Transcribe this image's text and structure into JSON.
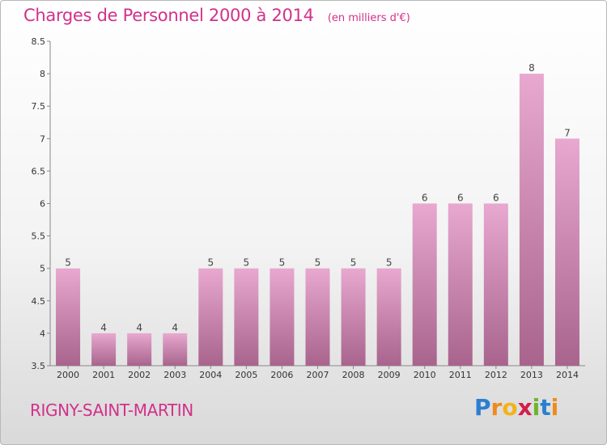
{
  "header": {
    "title": "Charges de Personnel 2000 à 2014",
    "subtitle": "(en milliers d'€)"
  },
  "footer": {
    "location": "RIGNY-SAINT-MARTIN",
    "logo_letters": [
      "P",
      "r",
      "o",
      "x",
      "i",
      "t",
      "i"
    ],
    "logo_colors": [
      "#2a7fd0",
      "#f08a1a",
      "#f2b21a",
      "#d21e4c",
      "#6cb52d",
      "#2a7fd0",
      "#f08a1a"
    ]
  },
  "colors": {
    "bar_top": "#e8a8d0",
    "bar_bottom": "#a8648c",
    "accent": "#d2318a"
  },
  "chart_data": {
    "type": "bar",
    "title": "Charges de Personnel 2000 à 2014",
    "subtitle": "(en milliers d'€)",
    "categories": [
      "2000",
      "2001",
      "2002",
      "2003",
      "2004",
      "2005",
      "2006",
      "2007",
      "2008",
      "2009",
      "2010",
      "2011",
      "2012",
      "2013",
      "2014"
    ],
    "values": [
      5,
      4,
      4,
      4,
      5,
      5,
      5,
      5,
      5,
      5,
      6,
      6,
      6,
      8,
      7
    ],
    "value_labels": [
      "5",
      "4",
      "4",
      "4",
      "5",
      "5",
      "5",
      "5",
      "5",
      "5",
      "6",
      "6",
      "6",
      "8",
      "7"
    ],
    "ylim": [
      3.5,
      8.5
    ],
    "yticks": [
      "3.5",
      "4",
      "4.5",
      "5",
      "5.5",
      "6",
      "6.5",
      "7",
      "7.5",
      "8",
      "8.5"
    ],
    "grid": false,
    "xlabel": "",
    "ylabel": ""
  }
}
